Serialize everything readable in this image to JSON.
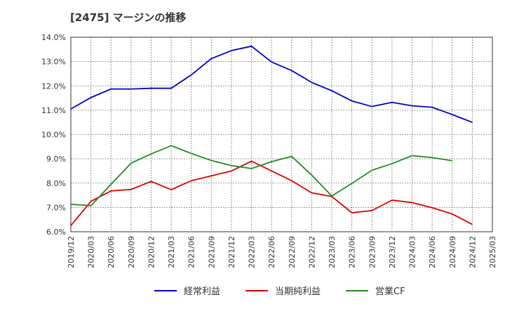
{
  "chart_data": {
    "type": "line",
    "title": "[2475]  マージンの推移",
    "ylim": [
      6.0,
      14.0
    ],
    "y_ticks": [
      "6.0%",
      "7.0%",
      "8.0%",
      "9.0%",
      "10.0%",
      "11.0%",
      "12.0%",
      "13.0%",
      "14.0%"
    ],
    "x_ticks": [
      "2019/12",
      "2020/03",
      "2020/06",
      "2020/09",
      "2020/12",
      "2021/03",
      "2021/06",
      "2021/09",
      "2021/12",
      "2022/03",
      "2022/06",
      "2022/09",
      "2022/12",
      "2023/03",
      "2023/06",
      "2023/09",
      "2023/12",
      "2024/03",
      "2024/06",
      "2024/09",
      "2024/12",
      "2025/03"
    ],
    "grid": true,
    "legend_position": "bottom",
    "series": [
      {
        "name": "経常利益",
        "color": "#0000cc",
        "values": [
          11.05,
          11.52,
          11.87,
          11.87,
          11.9,
          11.9,
          12.45,
          13.12,
          13.45,
          13.63,
          12.98,
          12.63,
          12.14,
          11.8,
          11.38,
          11.15,
          11.32,
          11.18,
          11.12,
          10.82,
          10.5,
          null
        ]
      },
      {
        "name": "当期純利益",
        "color": "#dd0000",
        "values": [
          6.25,
          7.25,
          7.68,
          7.74,
          8.07,
          7.73,
          8.1,
          8.3,
          8.5,
          8.9,
          8.5,
          8.1,
          7.6,
          7.45,
          6.78,
          6.87,
          7.3,
          7.2,
          6.99,
          6.73,
          6.3,
          null
        ]
      },
      {
        "name": "営業CF",
        "color": "#228b22",
        "values": [
          7.13,
          7.07,
          7.95,
          8.82,
          9.2,
          9.54,
          9.22,
          8.93,
          8.72,
          8.6,
          8.88,
          9.1,
          8.33,
          7.47,
          7.99,
          8.53,
          8.8,
          9.13,
          9.05,
          8.92,
          null,
          null
        ]
      }
    ]
  }
}
